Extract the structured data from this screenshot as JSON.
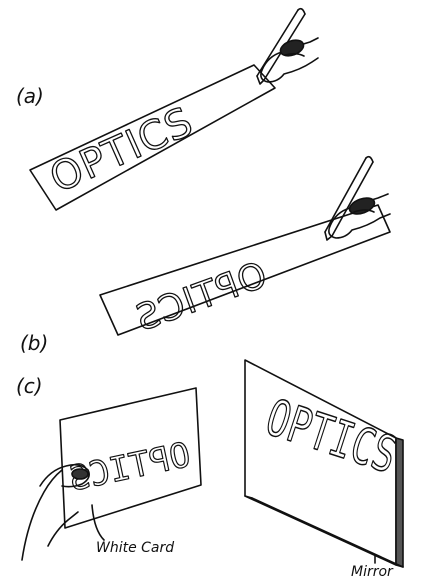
{
  "labels": {
    "a": "(a)",
    "b": "(b)",
    "c": "(c)",
    "white_card": "White Card",
    "mirror": "Mirror"
  },
  "words": {
    "card_a": "OPTICS",
    "card_b": "OPTICS",
    "card_c": "OPTICS",
    "mirror_c": "OPTICS"
  },
  "colors": {
    "ink": "#111111",
    "paper": "#ffffff",
    "shade": "#555555"
  }
}
